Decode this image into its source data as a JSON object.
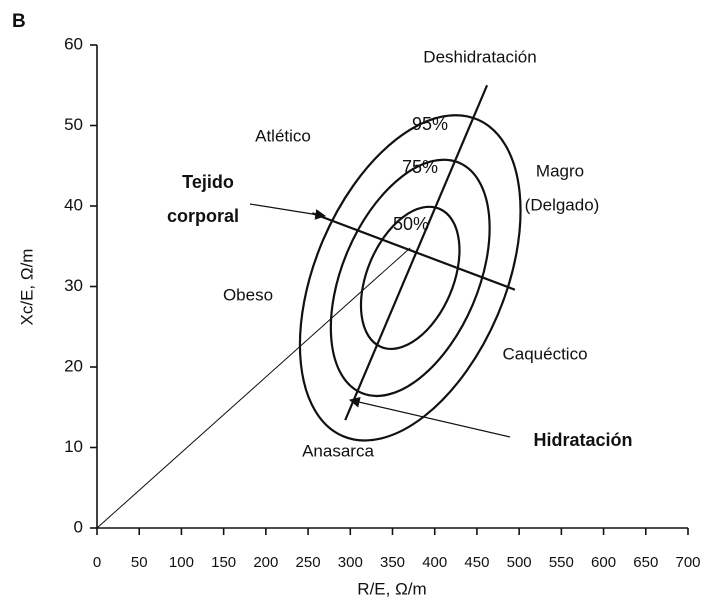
{
  "chart_data": {
    "type": "rxc",
    "panel_label": "B",
    "x_label": "R/E,  Ω/m",
    "y_label": "Xc/E,  Ω/m",
    "xlim": [
      0,
      700
    ],
    "ylim": [
      0,
      60
    ],
    "xticks": [
      0,
      50,
      100,
      150,
      200,
      250,
      300,
      350,
      400,
      450,
      500,
      550,
      600,
      650,
      700
    ],
    "yticks": [
      0,
      10,
      20,
      30,
      40,
      50,
      60
    ],
    "ellipse_labels": [
      "95%",
      "75%",
      "50%"
    ],
    "center": {
      "x": 371,
      "y": 34.8
    },
    "lines": [
      {
        "x": [
          294,
          462
        ],
        "y": [
          13.4,
          55.0
        ]
      },
      {
        "x": [
          255,
          495
        ],
        "y": [
          39.1,
          29.6
        ]
      },
      {
        "x": [
          0,
          371
        ],
        "y": [
          0,
          34.8
        ]
      }
    ],
    "annotations": [
      "Deshidratación",
      "Atlético",
      "Magro",
      "(Delgado)",
      "Tejido",
      "corporal",
      "Obeso",
      "Caquéctico",
      "Anasarca",
      "Hidratación"
    ]
  }
}
